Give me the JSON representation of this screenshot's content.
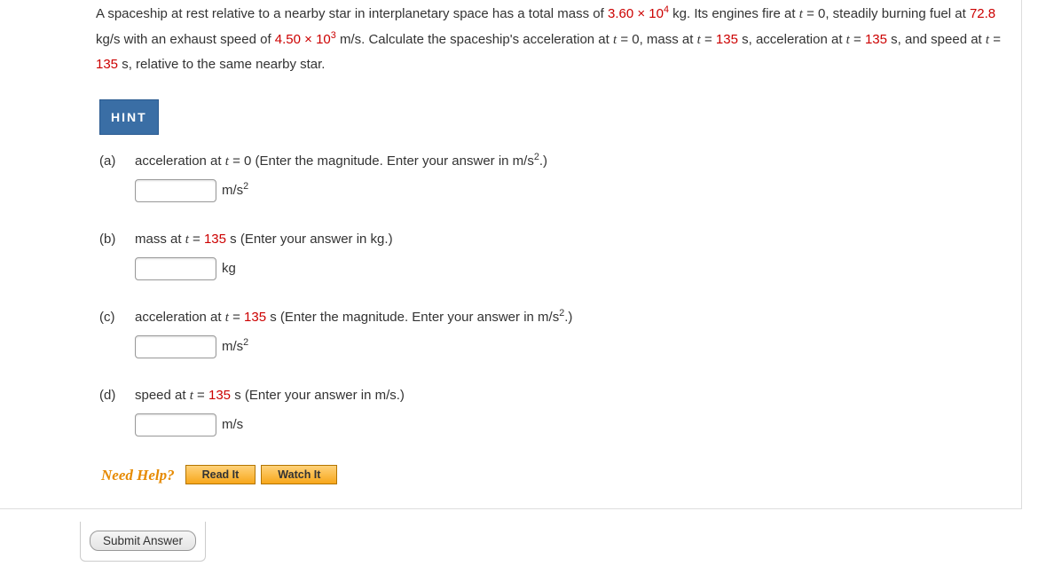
{
  "problem": {
    "intro_a": "A spaceship at rest relative to a nearby star in interplanetary space has a total mass of ",
    "mass_val": "3.60 × 10",
    "mass_exp": "4",
    "intro_b": " kg. Its engines fire at ",
    "t_var": "t",
    "eq0": " = 0, steadily burning fuel at ",
    "burn_rate": "72.8",
    "intro_c": " kg/s with an exhaust speed of ",
    "exhaust_val": "4.50 × 10",
    "exhaust_exp": "3",
    "intro_d": " m/s. Calculate the spaceship's acceleration at ",
    "eq0b": " = 0, mass at ",
    "t_eq": " = ",
    "t135": "135",
    "intro_e": " s, acceleration at ",
    "intro_f": " s, and speed at ",
    "intro_g": " s, relative to the same nearby star."
  },
  "hint_label": "HINT",
  "parts": {
    "a": {
      "label": "(a)",
      "prompt_a": "acceleration at ",
      "prompt_b": " = 0 (Enter the magnitude. Enter your answer in m/s",
      "prompt_exp": "2",
      "prompt_c": ".)",
      "unit_a": "m/s",
      "unit_exp": "2"
    },
    "b": {
      "label": "(b)",
      "prompt_a": "mass at ",
      "prompt_b": " = ",
      "t": "135",
      "prompt_c": " s (Enter your answer in kg.)",
      "unit": "kg"
    },
    "c": {
      "label": "(c)",
      "prompt_a": "acceleration at ",
      "prompt_b": " = ",
      "t": "135",
      "prompt_c": " s (Enter the magnitude. Enter your answer in m/s",
      "prompt_exp": "2",
      "prompt_d": ".)",
      "unit_a": "m/s",
      "unit_exp": "2"
    },
    "d": {
      "label": "(d)",
      "prompt_a": "speed at ",
      "prompt_b": " = ",
      "t": "135",
      "prompt_c": " s (Enter your answer in m/s.)",
      "unit": "m/s"
    }
  },
  "help": {
    "need": "Need Help?",
    "read": "Read It",
    "watch": "Watch It"
  },
  "submit": "Submit Answer",
  "colors": {
    "red": "#cc0000",
    "hint_bg": "#3a6ea5",
    "help_orange": "#e68a00",
    "help_btn_border": "#b37400"
  }
}
